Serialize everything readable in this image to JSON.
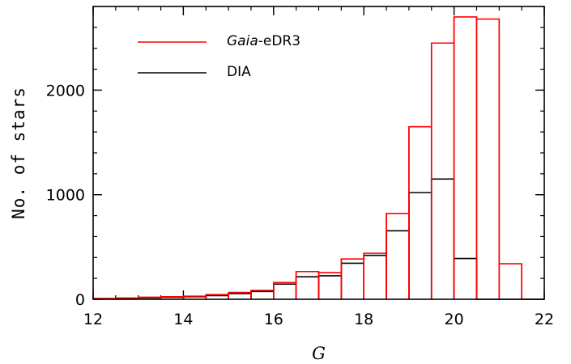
{
  "chart_data": {
    "type": "histogram",
    "xlabel": "G",
    "ylabel": "No. of stars",
    "xlim": [
      12,
      22
    ],
    "ylim": [
      0,
      2800
    ],
    "xticks": [
      12,
      14,
      16,
      18,
      20,
      22
    ],
    "yticks": [
      0,
      1000,
      2000
    ],
    "x_minor_step": 0.5,
    "y_minor_step": 200,
    "bin_width": 0.5,
    "bin_edges": [
      12,
      12.5,
      13,
      13.5,
      14,
      14.5,
      15,
      15.5,
      16,
      16.5,
      17,
      17.5,
      18,
      18.5,
      19,
      19.5,
      20,
      20.5,
      21,
      21.5,
      22
    ],
    "legend_position": "top-left",
    "series": [
      {
        "name": "Gaia-eDR3",
        "name_italic_part": "Gaia",
        "name_rest": "-eDR3",
        "color": "#ff0000",
        "values": [
          8,
          12,
          20,
          25,
          30,
          45,
          65,
          85,
          160,
          265,
          255,
          385,
          440,
          820,
          1650,
          2450,
          2700,
          2680,
          340,
          0
        ]
      },
      {
        "name": "DIA",
        "color": "#000000",
        "values": [
          5,
          8,
          15,
          20,
          25,
          35,
          55,
          75,
          145,
          215,
          225,
          345,
          420,
          655,
          1020,
          1150,
          390,
          0,
          0,
          0
        ]
      }
    ]
  }
}
